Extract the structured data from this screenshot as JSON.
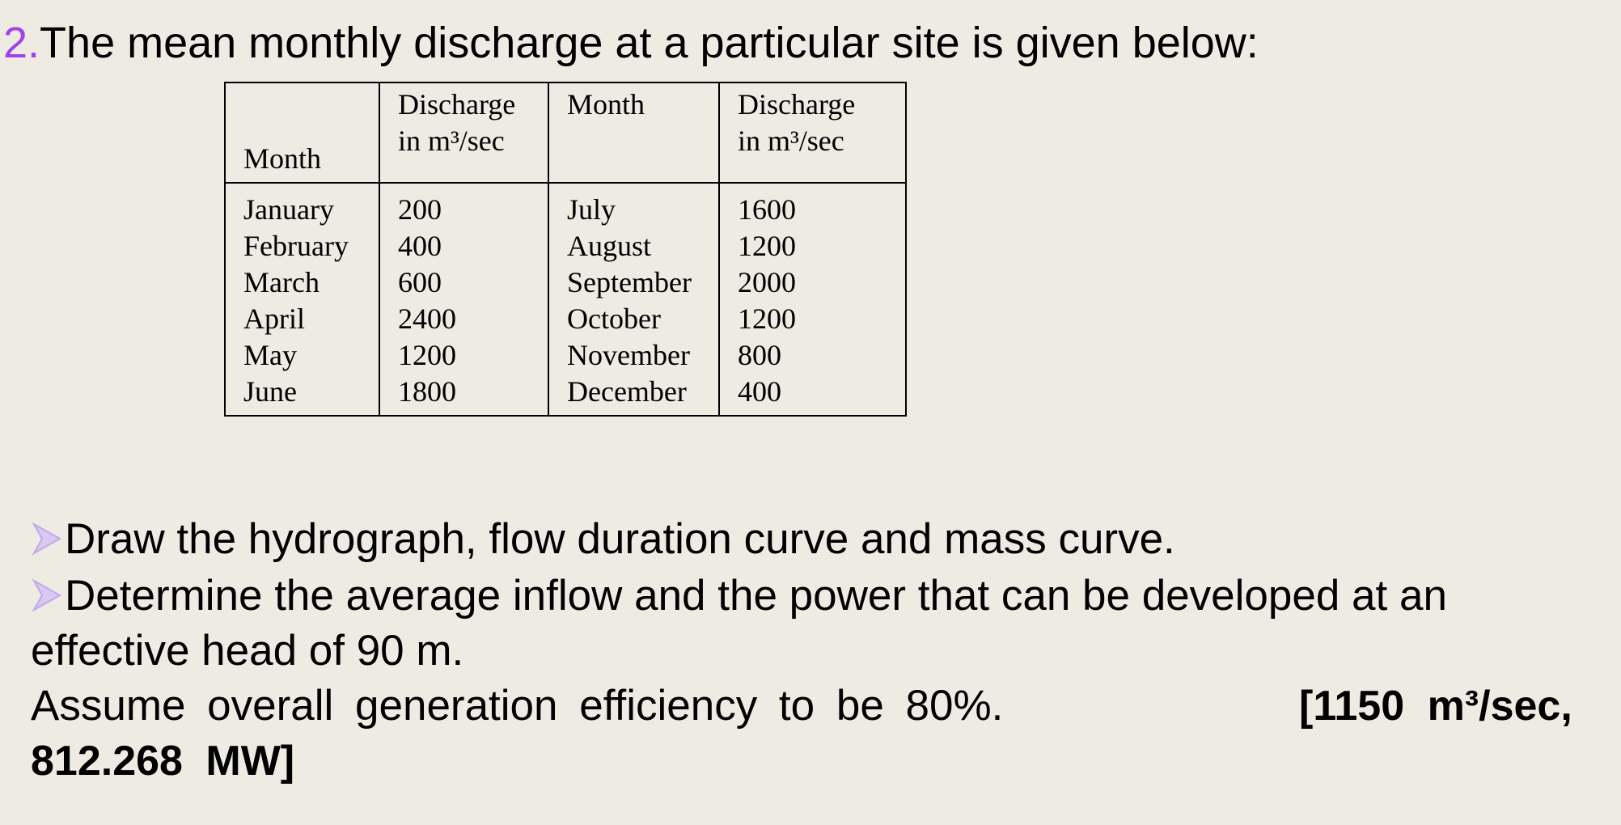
{
  "question": {
    "number": "2.",
    "text": "The mean monthly discharge at a particular site is given below:"
  },
  "table": {
    "headers": [
      [
        "Month"
      ],
      [
        "Discharge",
        "in m³/sec"
      ],
      [
        "Month"
      ],
      [
        "Discharge",
        "in m³/sec"
      ]
    ],
    "rows": [
      [
        "January",
        200,
        "July",
        1600
      ],
      [
        "February",
        400,
        "August",
        1200
      ],
      [
        "March",
        600,
        "September",
        2000
      ],
      [
        "April",
        2400,
        "October",
        1200
      ],
      [
        "May",
        1200,
        "November",
        800
      ],
      [
        "June",
        1800,
        "December",
        400
      ]
    ]
  },
  "bullets": [
    "Draw the hydrograph, flow duration curve and mass curve.",
    "Determine the average inflow and the power that can be developed at an effective head of 90 m."
  ],
  "assumption": "Assume overall generation efficiency to be 80%.",
  "answer": "[1150 m³/sec, 812.268 MW]"
}
